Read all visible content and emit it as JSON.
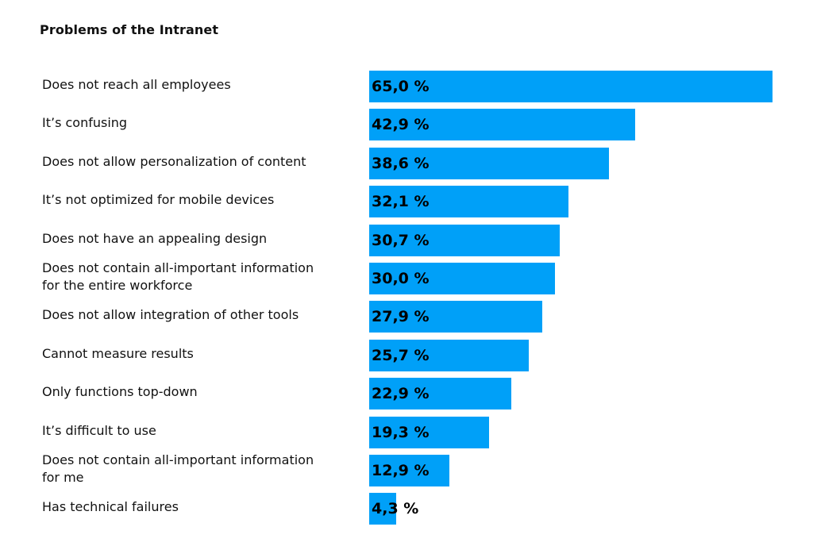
{
  "chart_data": {
    "type": "bar",
    "orientation": "horizontal",
    "title": "Problems of the Intranet",
    "categories": [
      [
        "Does not reach all employees"
      ],
      [
        "It’s confusing"
      ],
      [
        "Does not allow personalization of content"
      ],
      [
        "It’s not optimized for mobile devices"
      ],
      [
        "Does not have an appealing design"
      ],
      [
        "Does not contain all-important information",
        "for the entire workforce"
      ],
      [
        "Does not allow integration of other tools"
      ],
      [
        "Cannot measure results"
      ],
      [
        "Only functions top-down"
      ],
      [
        "It’s difficult to use"
      ],
      [
        "Does not contain all-important information",
        "for me"
      ],
      [
        "Has technical failures"
      ]
    ],
    "values": [
      65.0,
      42.9,
      38.6,
      32.1,
      30.7,
      30.0,
      27.9,
      25.7,
      22.9,
      19.3,
      12.9,
      4.3
    ],
    "data_labels": [
      "65,0 %",
      "42,9 %",
      "38,6 %",
      "32,1 %",
      "30,7 %",
      "30,0 %",
      "27,9 %",
      "25,7 %",
      "22,9 %",
      "19,3 %",
      "12,9 %",
      "4,3 %"
    ],
    "xlim": [
      0,
      65
    ],
    "bar_color": "#00A0F8",
    "grid": false,
    "legend": "none"
  }
}
